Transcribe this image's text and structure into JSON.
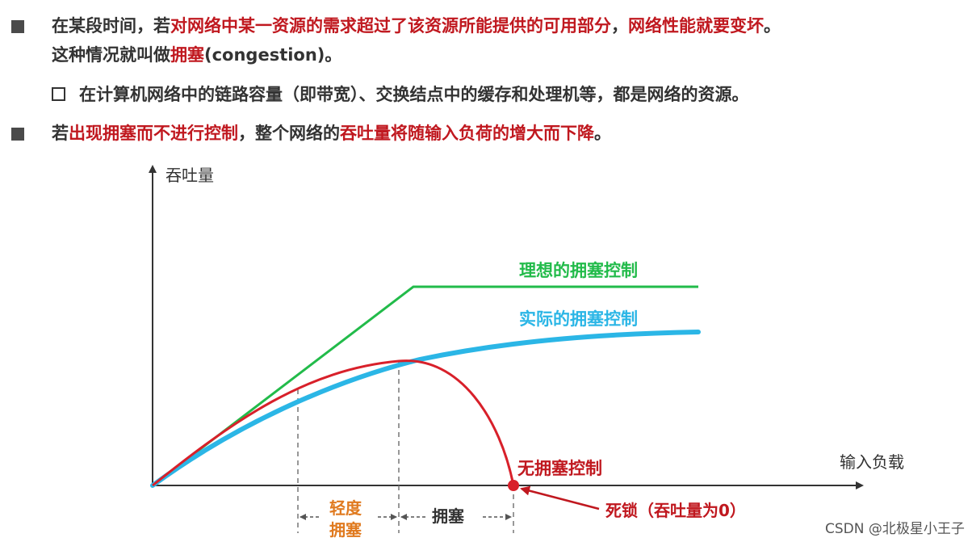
{
  "bullets": {
    "b1": {
      "p1": "在某段时间，若",
      "p2": "对网络中某一资源的需求超过了该资源所能提供的可用部分",
      "p3": "，",
      "p4": "网络性能就要变坏",
      "p5": "。",
      "line2a": "这种情况就叫做",
      "line2b": "拥塞",
      "line2c": "(congestion)。"
    },
    "sub": "在计算机网络中的链路容量（即带宽）、交换结点中的缓存和处理机等，都是网络的资源。",
    "b2": {
      "p1": "若",
      "p2": "出现拥塞而不进行控制",
      "p3": "，整个网络的",
      "p4": "吞吐量将随输入负荷的增大而下降",
      "p5": "。"
    }
  },
  "diagram": {
    "y_axis_label": "吞吐量",
    "x_axis_label": "输入负载",
    "curve_ideal_label": "理想的拥塞控制",
    "curve_actual_label": "实际的拥塞控制",
    "curve_none_label": "无拥塞控制",
    "deadlock_label": "死锁（吞吐量为0）",
    "range_light_label_1": "轻度",
    "range_light_label_2": "拥塞",
    "range_congestion_label": "拥塞",
    "colors": {
      "ideal": "#22bb4a",
      "actual": "#2bb6e6",
      "none": "#d8202a",
      "light_range": "#e07a1f",
      "text_red": "#c0181f",
      "axis": "#333333"
    }
  },
  "watermark": "CSDN @北极星小王子"
}
